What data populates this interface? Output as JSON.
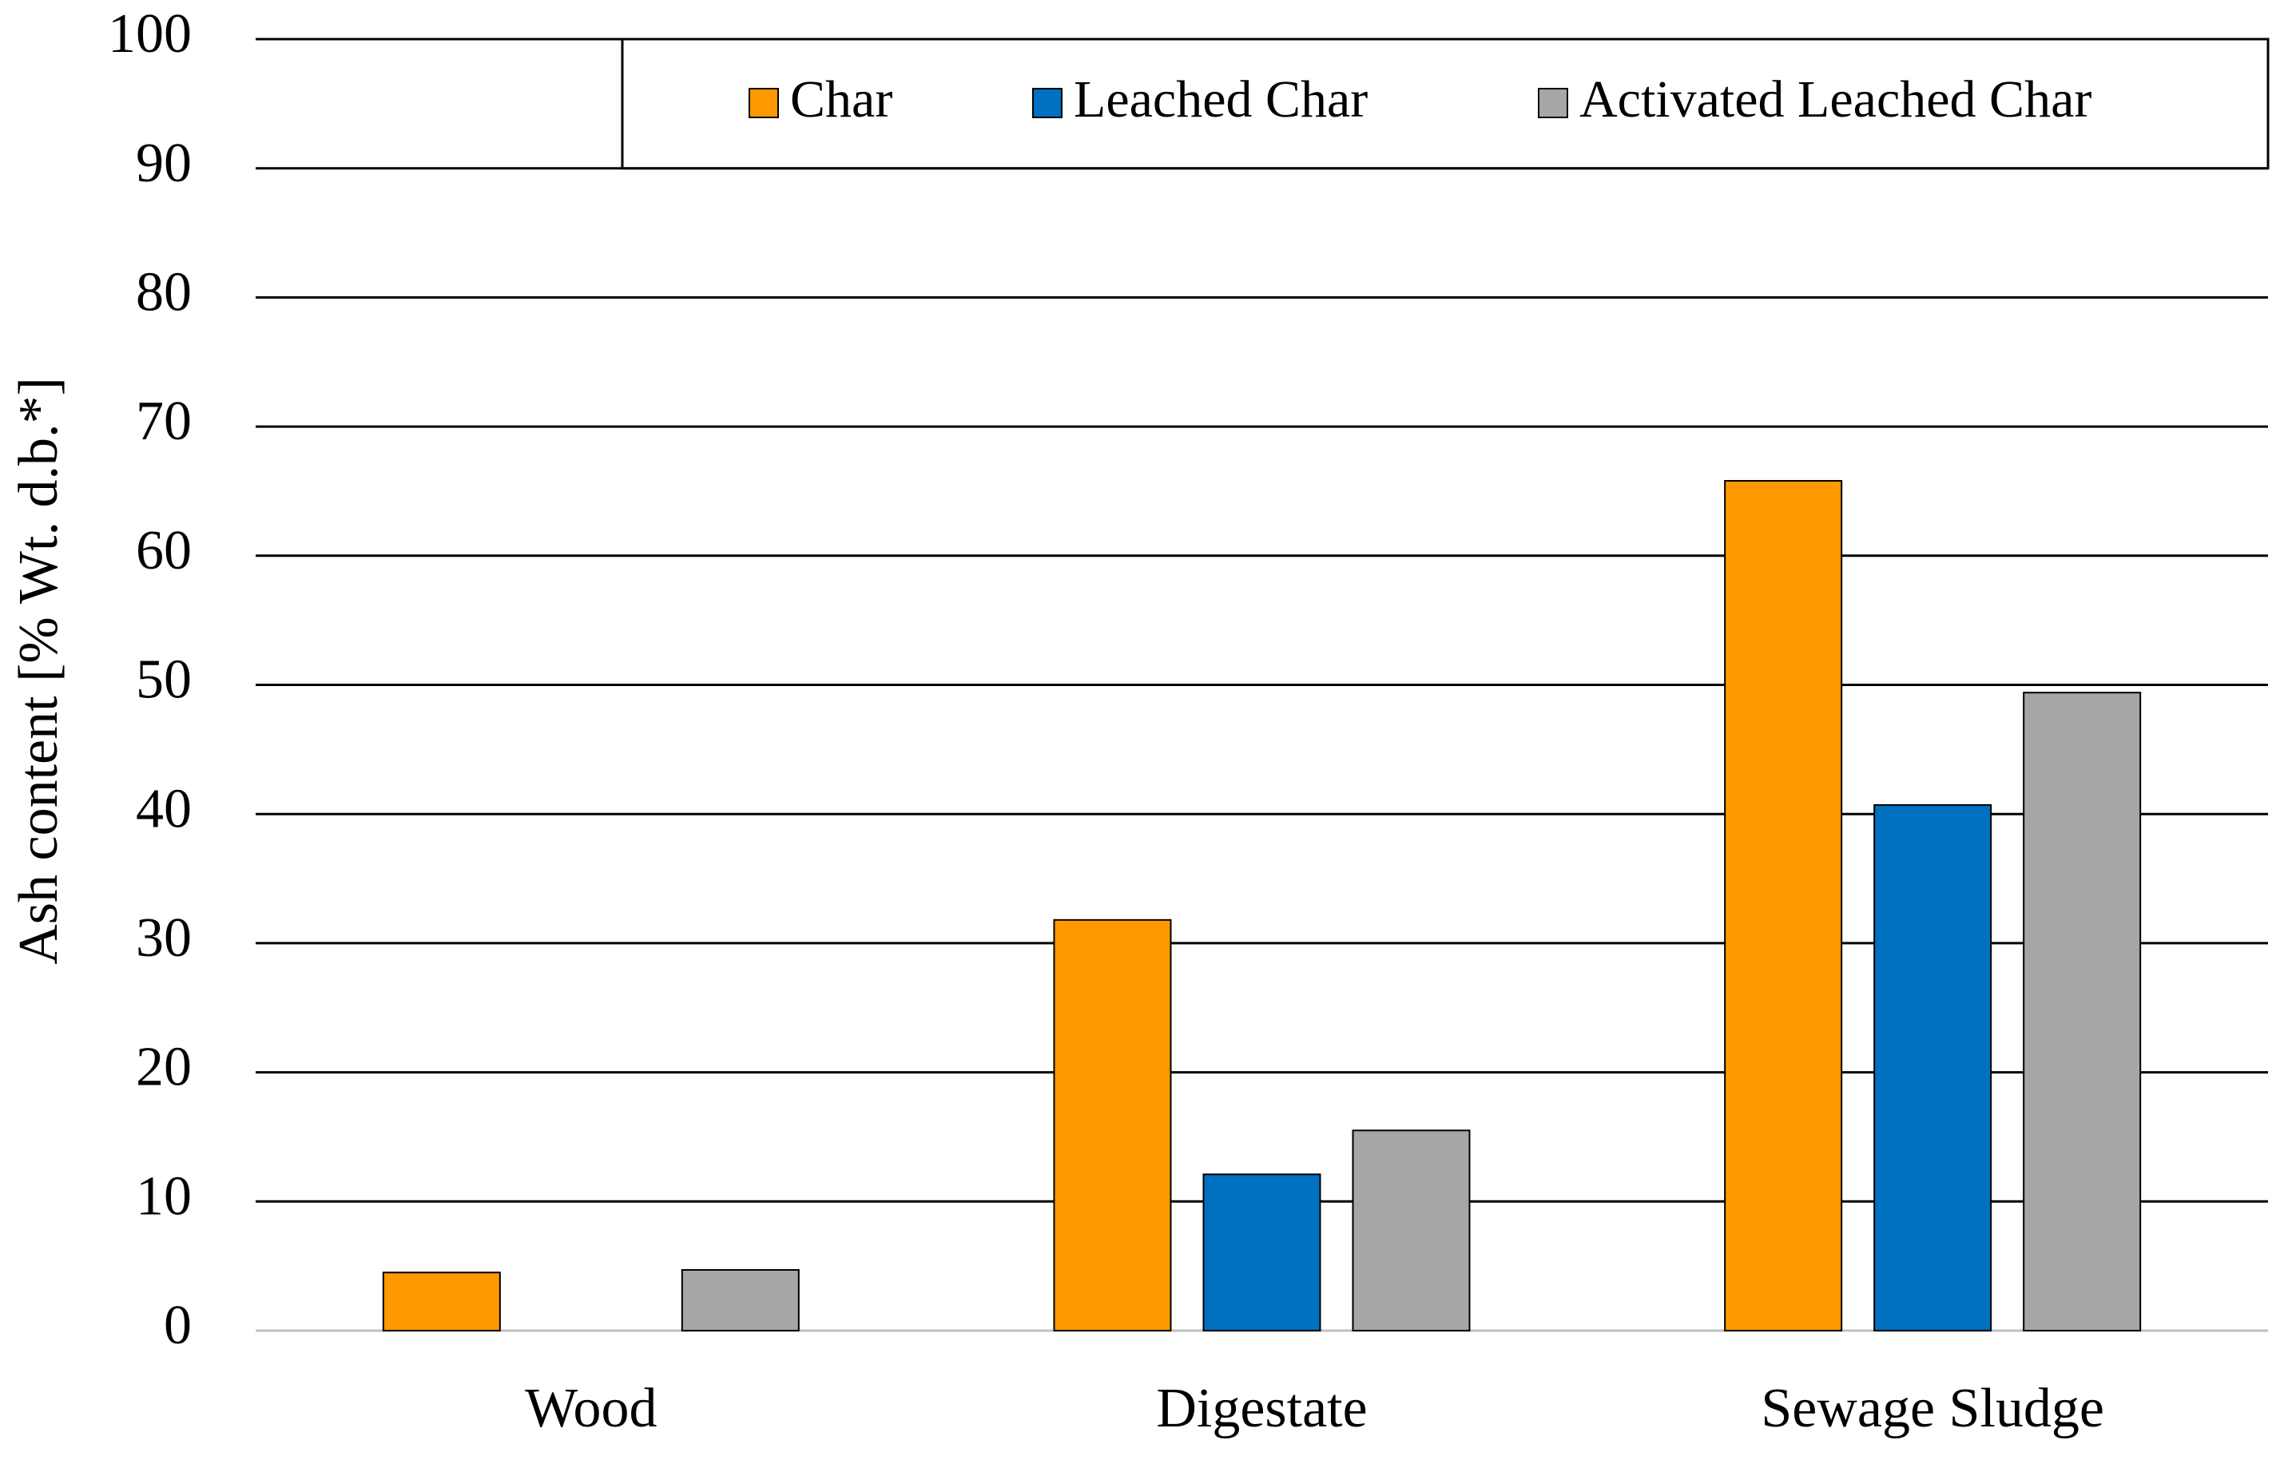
{
  "chart_data": {
    "type": "bar",
    "y_label": "Ash content [%  Wt. d.b.*]",
    "categories": [
      "Wood",
      "Digestate",
      "Sewage Sludge"
    ],
    "series": [
      {
        "name": "Char",
        "color": "#ff9900",
        "values": [
          4.5,
          31.8,
          65.8
        ]
      },
      {
        "name": "Leached Char",
        "color": "#0070c0",
        "values": [
          null,
          12.1,
          40.7
        ]
      },
      {
        "name": "Activated Leached Char",
        "color": "#a6a6a6",
        "values": [
          4.7,
          15.5,
          49.4
        ]
      }
    ],
    "ylim": [
      0,
      100
    ],
    "yticks": [
      0,
      10,
      20,
      30,
      40,
      50,
      60,
      70,
      80,
      90,
      100
    ],
    "grid": true,
    "legend": "top"
  }
}
